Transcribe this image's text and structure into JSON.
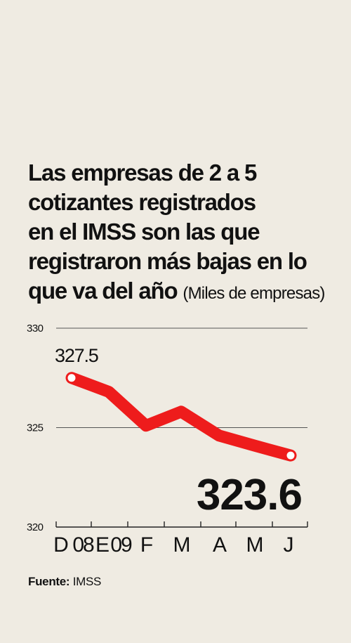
{
  "title_lines": [
    "Las empresas de 2 a 5",
    "cotizantes registrados",
    "en el IMSS son las que",
    "registraron más bajas en lo",
    "que va del año"
  ],
  "unit": "(Miles de empresas)",
  "source_label": "Fuente:",
  "source_value": "IMSS",
  "colors": {
    "line": "#ee1c1c",
    "background": "#efebe2",
    "text": "#111111"
  },
  "chart_data": {
    "type": "line",
    "title": "Las empresas de 2 a 5 cotizantes registrados en el IMSS son las que registraron más bajas en lo que va del año",
    "ylabel": "(Miles de empresas)",
    "xlabel": "",
    "ylim": [
      320,
      330
    ],
    "yticks": [
      "320",
      "325",
      "330"
    ],
    "categories": [
      "D",
      "08",
      "E",
      "09",
      "F",
      "M",
      "A",
      "M",
      "J"
    ],
    "points": [
      {
        "x": "D 08",
        "y": 327.5
      },
      {
        "x": "E 09",
        "y": 326.8
      },
      {
        "x": "F",
        "y": 325.1
      },
      {
        "x": "M",
        "y": 325.8
      },
      {
        "x": "A",
        "y": 324.6
      },
      {
        "x": "M",
        "y": 324.1
      },
      {
        "x": "J",
        "y": 323.6
      }
    ],
    "annotations": [
      {
        "text": "327.5",
        "point": 0
      },
      {
        "text": "323.6",
        "point": 6
      }
    ],
    "grid": true
  }
}
